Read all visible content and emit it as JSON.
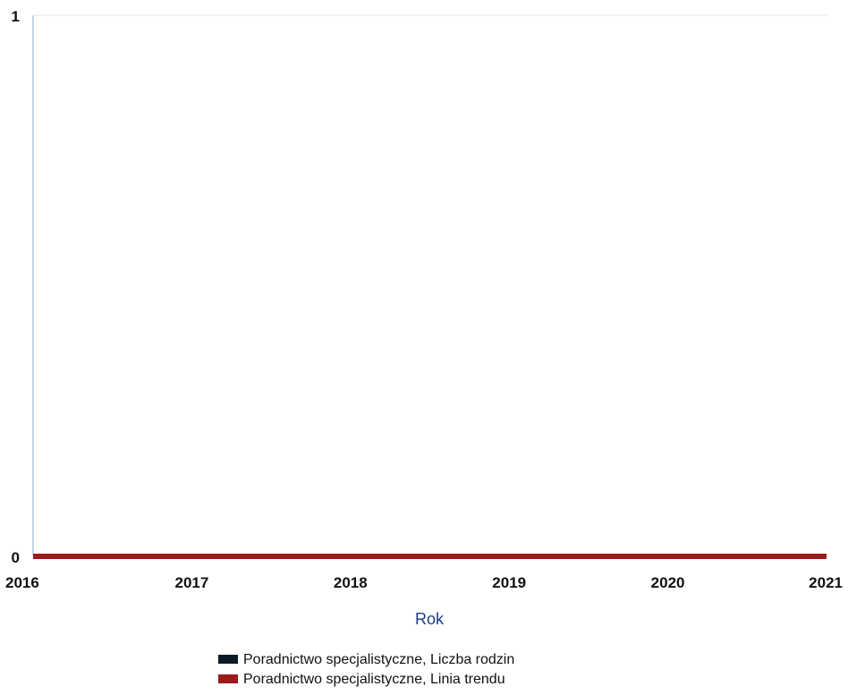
{
  "chart_data": {
    "type": "line",
    "xlabel": "Rok",
    "ylabel": "",
    "x": [
      2016,
      2017,
      2018,
      2019,
      2020,
      2021
    ],
    "xlim": [
      2016,
      2021
    ],
    "ylim": [
      0,
      1
    ],
    "y_ticks": [
      "0",
      "1"
    ],
    "x_ticks": [
      "2016",
      "2017",
      "2018",
      "2019",
      "2020",
      "2021"
    ],
    "grid": false,
    "legend_position": "bottom",
    "series": [
      {
        "name": "Poradnictwo specjalistyczne, Liczba rodzin",
        "color": "#0b1a26",
        "values": [
          0,
          0,
          0,
          0,
          0,
          0
        ]
      },
      {
        "name": "Poradnictwo specjalistyczne, Linia trendu",
        "color": "#9b1b1b",
        "values": [
          0,
          0,
          0,
          0,
          0,
          0
        ]
      }
    ]
  }
}
